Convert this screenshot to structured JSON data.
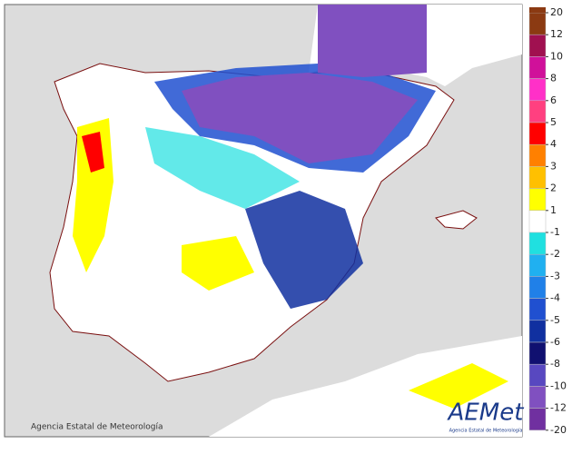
{
  "legend": {
    "ticks": [
      20,
      12,
      10,
      8,
      6,
      5,
      4,
      3,
      2,
      1,
      -1,
      -2,
      -3,
      -4,
      -5,
      -6,
      -8,
      -10,
      -12,
      -20
    ],
    "colors": [
      "#8b3a12",
      "#a01050",
      "#d0109a",
      "#ff30c8",
      "#ff4080",
      "#ff0000",
      "#ff8000",
      "#ffc000",
      "#ffff00",
      "#ffffff",
      "#20e0e0",
      "#20b0f0",
      "#2080e8",
      "#2050d0",
      "#1030a0",
      "#101070",
      "#5848c0",
      "#8050c0",
      "#7030a0"
    ]
  },
  "credit": "Agencia Estatal de Meteorología",
  "logo": {
    "text": "AEMet",
    "subtitle": "Agencia Estatal de Meteorología"
  }
}
